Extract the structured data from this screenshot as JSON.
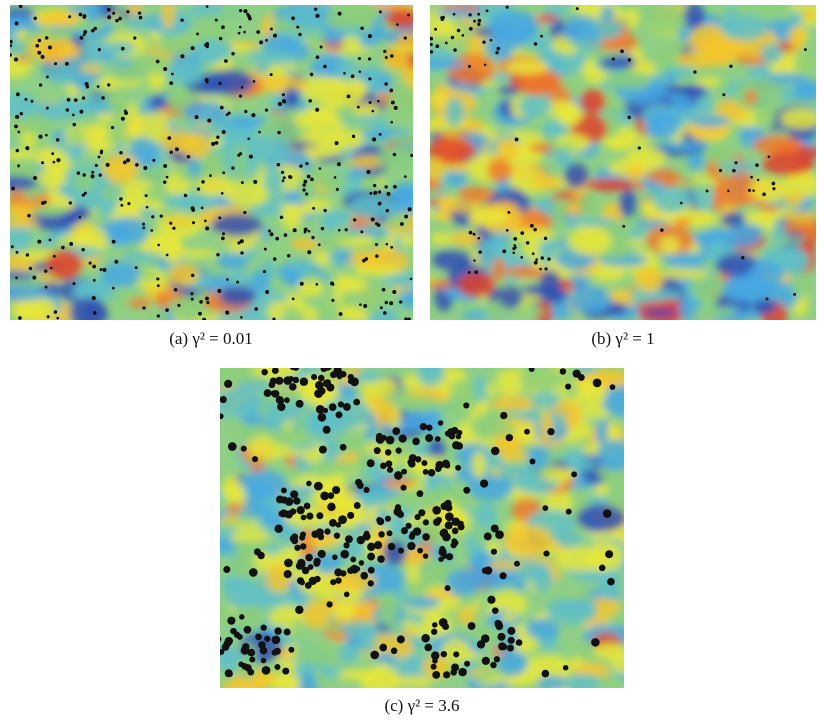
{
  "figure": {
    "panels": [
      {
        "caption": "(a) γ² = 0.01"
      },
      {
        "caption": "(b) γ² = 1"
      },
      {
        "caption": "(c) γ² = 3.6"
      }
    ]
  }
}
